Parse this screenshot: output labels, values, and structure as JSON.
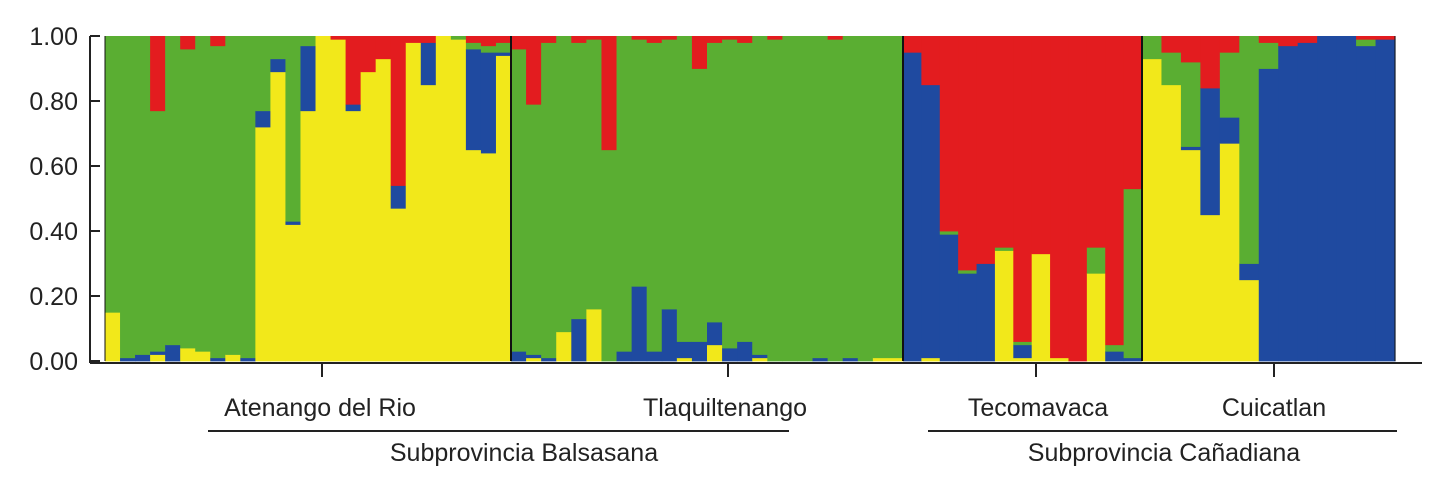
{
  "chart_data": {
    "type": "bar",
    "stacked": true,
    "y_ticks": [
      "0.00",
      "0.20",
      "0.40",
      "0.60",
      "0.80",
      "1.00"
    ],
    "ylim": [
      0,
      1
    ],
    "series": [
      {
        "key": "yellow",
        "color": "#f2e81a"
      },
      {
        "key": "blue",
        "color": "#1f4aa0"
      },
      {
        "key": "green",
        "color": "#5aae32"
      },
      {
        "key": "red",
        "color": "#e31c1f"
      }
    ],
    "populations": [
      {
        "name": "Atenango del Rio",
        "individuals": [
          [
            0.15,
            0.0,
            0.85,
            0.0
          ],
          [
            0.0,
            0.01,
            0.99,
            0.0
          ],
          [
            0.0,
            0.02,
            0.98,
            0.0
          ],
          [
            0.02,
            0.01,
            0.74,
            0.23
          ],
          [
            0.0,
            0.05,
            0.95,
            0.0
          ],
          [
            0.04,
            0.0,
            0.92,
            0.04
          ],
          [
            0.03,
            0.0,
            0.97,
            0.0
          ],
          [
            0.0,
            0.01,
            0.96,
            0.03
          ],
          [
            0.02,
            0.0,
            0.98,
            0.0
          ],
          [
            0.0,
            0.01,
            0.99,
            0.0
          ],
          [
            0.72,
            0.05,
            0.23,
            0.0
          ],
          [
            0.89,
            0.04,
            0.07,
            0.0
          ],
          [
            0.42,
            0.01,
            0.57,
            0.0
          ],
          [
            0.77,
            0.2,
            0.03,
            0.0
          ],
          [
            1.0,
            0.0,
            0.0,
            0.0
          ],
          [
            0.99,
            0.0,
            0.0,
            0.01
          ],
          [
            0.77,
            0.02,
            0.0,
            0.21
          ],
          [
            0.89,
            0.0,
            0.0,
            0.11
          ],
          [
            0.93,
            0.0,
            0.0,
            0.07
          ],
          [
            0.47,
            0.07,
            0.0,
            0.46
          ],
          [
            0.98,
            0.0,
            0.0,
            0.02
          ],
          [
            0.85,
            0.13,
            0.0,
            0.02
          ],
          [
            1.0,
            0.0,
            0.0,
            0.0
          ],
          [
            0.99,
            0.0,
            0.01,
            0.0
          ],
          [
            0.65,
            0.31,
            0.02,
            0.02
          ],
          [
            0.64,
            0.31,
            0.02,
            0.03
          ],
          [
            0.94,
            0.01,
            0.03,
            0.02
          ]
        ]
      },
      {
        "name": "Tlaquiltenango",
        "individuals": [
          [
            0.0,
            0.03,
            0.93,
            0.04
          ],
          [
            0.01,
            0.01,
            0.77,
            0.21
          ],
          [
            0.0,
            0.01,
            0.97,
            0.02
          ],
          [
            0.09,
            0.0,
            0.91,
            0.0
          ],
          [
            0.0,
            0.13,
            0.85,
            0.02
          ],
          [
            0.16,
            0.0,
            0.83,
            0.01
          ],
          [
            0.0,
            0.0,
            0.65,
            0.35
          ],
          [
            0.0,
            0.03,
            0.97,
            0.0
          ],
          [
            0.0,
            0.23,
            0.76,
            0.01
          ],
          [
            0.0,
            0.03,
            0.95,
            0.02
          ],
          [
            0.0,
            0.16,
            0.83,
            0.01
          ],
          [
            0.01,
            0.05,
            0.94,
            0.0
          ],
          [
            0.0,
            0.06,
            0.84,
            0.1
          ],
          [
            0.05,
            0.07,
            0.86,
            0.02
          ],
          [
            0.0,
            0.04,
            0.95,
            0.01
          ],
          [
            0.0,
            0.06,
            0.92,
            0.02
          ],
          [
            0.01,
            0.01,
            0.98,
            0.0
          ],
          [
            0.0,
            0.0,
            0.99,
            0.01
          ],
          [
            0.0,
            0.0,
            1.0,
            0.0
          ],
          [
            0.0,
            0.0,
            1.0,
            0.0
          ],
          [
            0.0,
            0.01,
            0.99,
            0.0
          ],
          [
            0.0,
            0.0,
            0.99,
            0.01
          ],
          [
            0.0,
            0.01,
            0.99,
            0.0
          ],
          [
            0.0,
            0.0,
            1.0,
            0.0
          ],
          [
            0.01,
            0.0,
            0.99,
            0.0
          ],
          [
            0.01,
            0.0,
            0.99,
            0.0
          ]
        ]
      },
      {
        "name": "Tecomavaca",
        "individuals": [
          [
            0.0,
            0.95,
            0.0,
            0.05
          ],
          [
            0.01,
            0.84,
            0.0,
            0.15
          ],
          [
            0.0,
            0.39,
            0.01,
            0.6
          ],
          [
            0.0,
            0.27,
            0.01,
            0.72
          ],
          [
            0.0,
            0.3,
            0.0,
            0.7
          ],
          [
            0.34,
            0.0,
            0.01,
            0.65
          ],
          [
            0.01,
            0.04,
            0.01,
            0.94
          ],
          [
            0.33,
            0.0,
            0.0,
            0.67
          ],
          [
            0.01,
            0.0,
            0.0,
            0.99
          ],
          [
            0.0,
            0.0,
            0.0,
            1.0
          ],
          [
            0.27,
            0.0,
            0.08,
            0.65
          ],
          [
            0.0,
            0.03,
            0.02,
            0.95
          ],
          [
            0.0,
            0.01,
            0.52,
            0.47
          ]
        ]
      },
      {
        "name": "Cuicatlan",
        "individuals": [
          [
            0.93,
            0.0,
            0.07,
            0.0
          ],
          [
            0.85,
            0.0,
            0.1,
            0.05
          ],
          [
            0.65,
            0.01,
            0.26,
            0.08
          ],
          [
            0.45,
            0.39,
            0.0,
            0.16
          ],
          [
            0.67,
            0.08,
            0.2,
            0.05
          ],
          [
            0.25,
            0.05,
            0.7,
            0.0
          ],
          [
            0.0,
            0.9,
            0.08,
            0.02
          ],
          [
            0.0,
            0.97,
            0.0,
            0.03
          ],
          [
            0.0,
            0.98,
            0.0,
            0.02
          ],
          [
            0.0,
            1.0,
            0.0,
            0.0
          ],
          [
            0.0,
            1.0,
            0.0,
            0.0
          ],
          [
            0.0,
            0.97,
            0.02,
            0.01
          ],
          [
            0.0,
            0.99,
            0.0,
            0.01
          ]
        ]
      }
    ],
    "provinces": [
      {
        "name": "Subprovincia Balsasana",
        "populations": [
          "Atenango del Rio",
          "Tlaquiltenango"
        ]
      },
      {
        "name": "Subprovincia Cañadiana",
        "populations": [
          "Tecomavaca",
          "Cuicatlan"
        ]
      }
    ]
  }
}
